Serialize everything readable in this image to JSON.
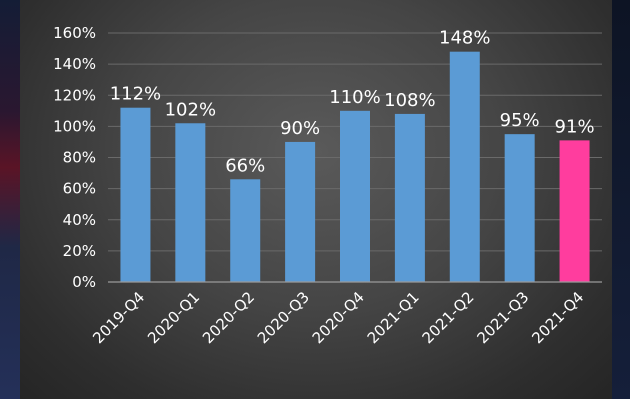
{
  "chart_data": {
    "type": "bar",
    "title": "",
    "xlabel": "",
    "ylabel": "",
    "ylim": [
      0,
      160
    ],
    "y_ticks": [
      "0%",
      "20%",
      "40%",
      "60%",
      "80%",
      "100%",
      "120%",
      "140%",
      "160%"
    ],
    "y_tick_values": [
      0,
      20,
      40,
      60,
      80,
      100,
      120,
      140,
      160
    ],
    "grid": true,
    "legend": "none",
    "categories": [
      "2019-Q4",
      "2020-Q1",
      "2020-Q2",
      "2020-Q3",
      "2020-Q4",
      "2021-Q1",
      "2021-Q2",
      "2021-Q3",
      "2021-Q4"
    ],
    "values": [
      112,
      102,
      66,
      90,
      110,
      108,
      148,
      95,
      91
    ],
    "value_labels": [
      "112%",
      "102%",
      "66%",
      "90%",
      "110%",
      "108%",
      "148%",
      "95%",
      "91%"
    ],
    "colors": {
      "bar": "#5b9bd5",
      "highlight_bar": "#ff3d9e",
      "highlight_index": 8,
      "background": "#3f3f3f",
      "gridline": "#6a6a6a",
      "text": "#ffffff"
    }
  }
}
